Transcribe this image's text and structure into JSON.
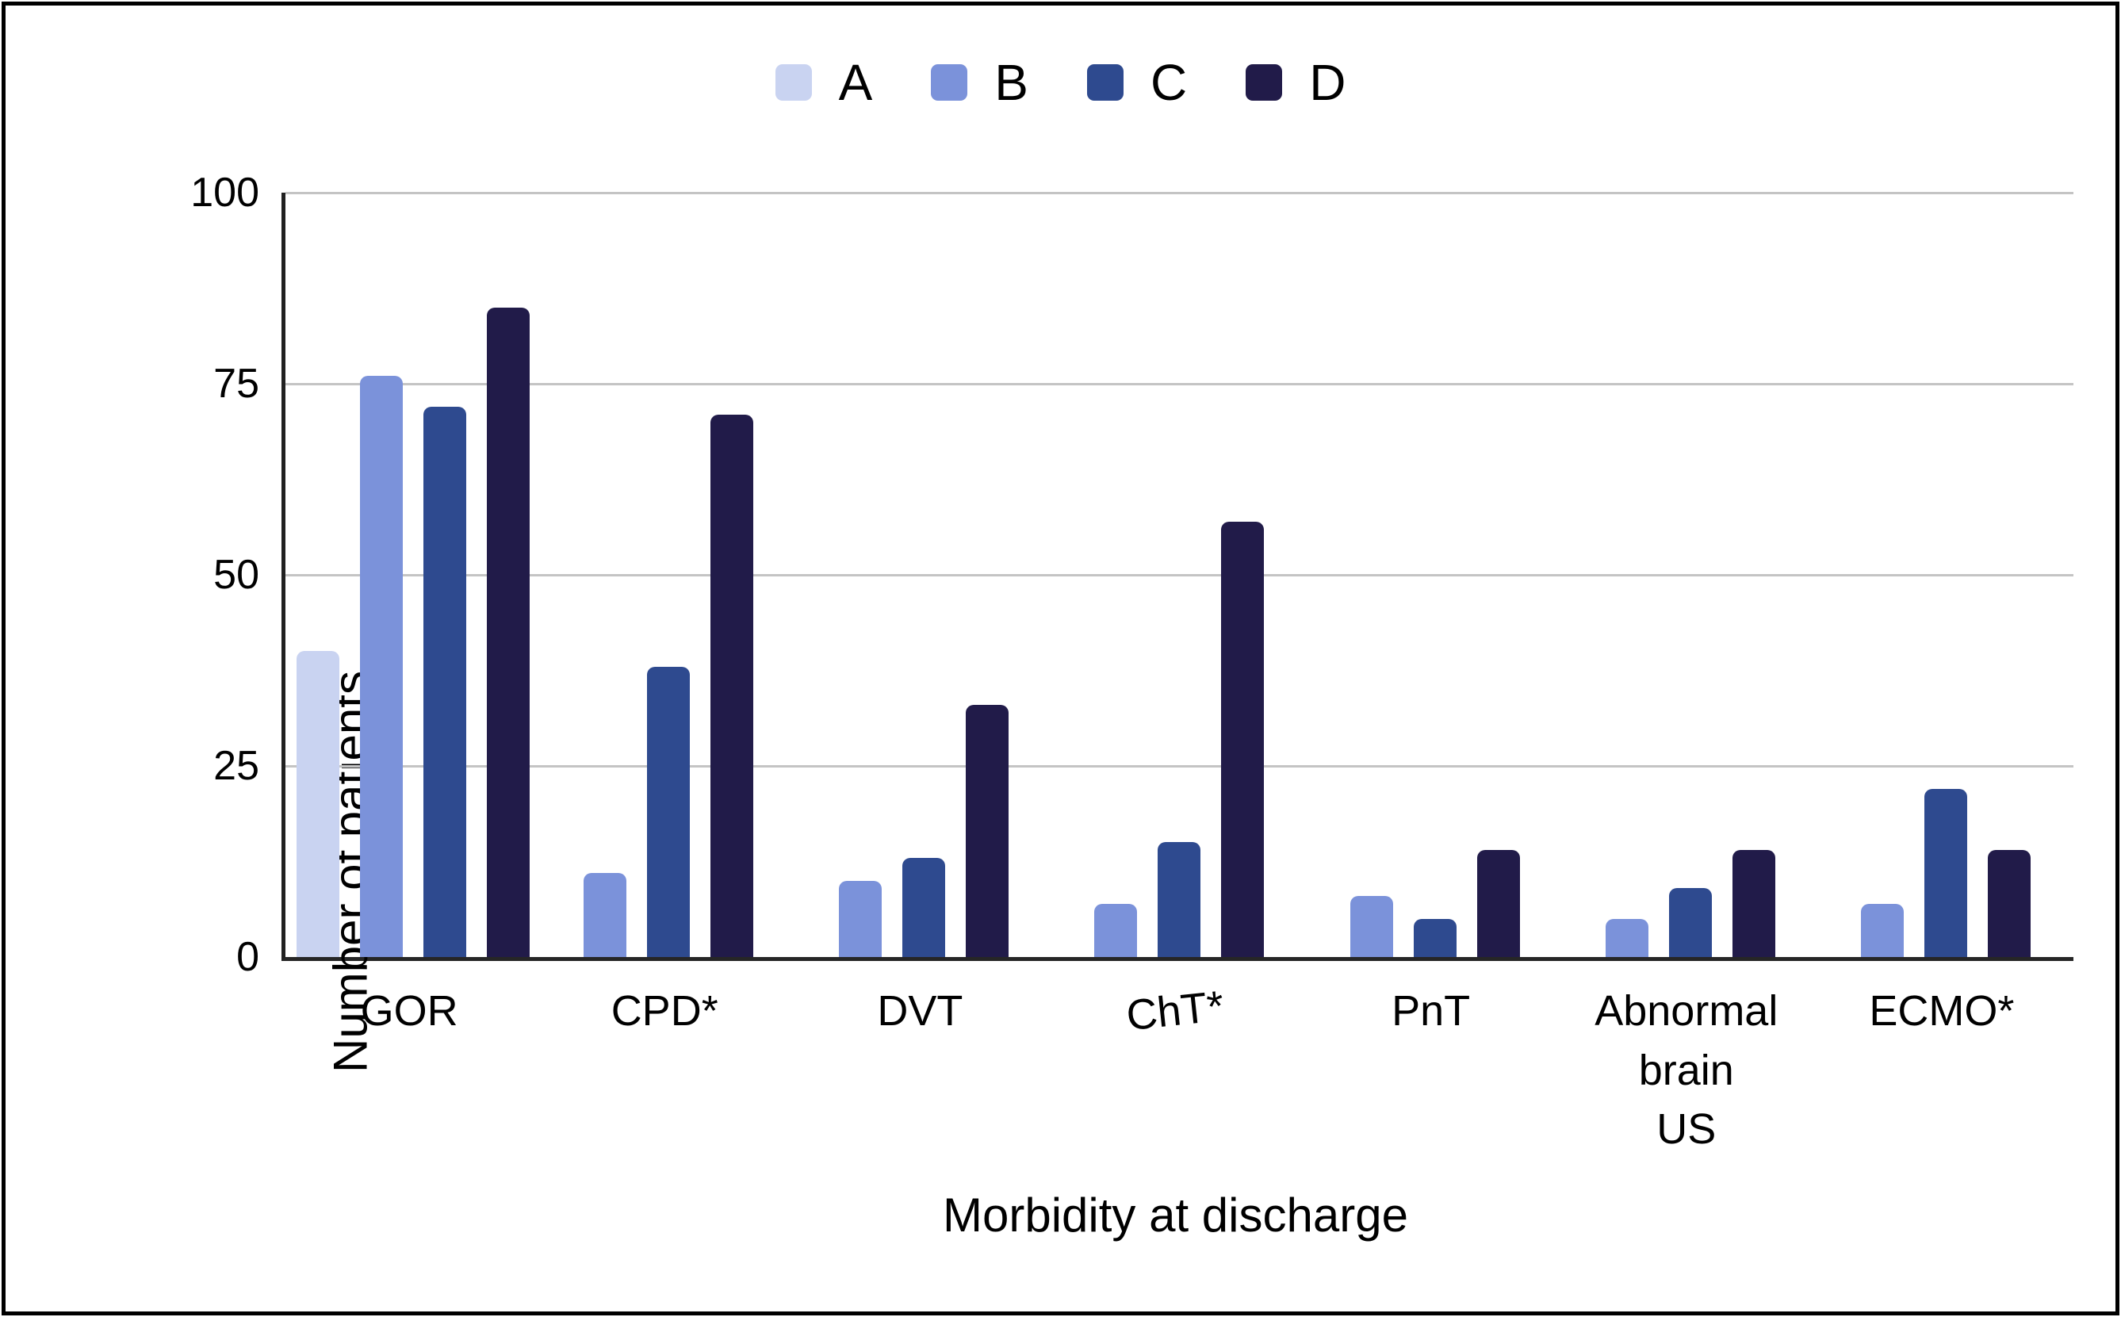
{
  "figure": {
    "background": "#ffffff",
    "border_color": "#000000"
  },
  "axes": {
    "grid_color": "#c4c4c4",
    "axis_color": "#212121",
    "text_color": "#000000"
  },
  "chart_data": {
    "type": "bar",
    "title": "",
    "xlabel": "Morbidity at discharge",
    "ylabel": "Number of patients",
    "ylim": [
      0,
      100
    ],
    "yticks": [
      0,
      25,
      50,
      75,
      100
    ],
    "grid": true,
    "legend_position": "top",
    "categories": [
      [
        "GOR"
      ],
      [
        "CPD*"
      ],
      [
        "DVT"
      ],
      [
        "ChT*"
      ],
      [
        "PnT"
      ],
      [
        "Abnormal",
        "brain",
        "US"
      ],
      [
        "ECMO*"
      ]
    ],
    "series": [
      {
        "name": "A",
        "color": "#c9d3f1",
        "values": [
          40,
          null,
          null,
          null,
          null,
          null,
          null
        ]
      },
      {
        "name": "B",
        "color": "#7b92da",
        "values": [
          76,
          11,
          10,
          7,
          8,
          5,
          7
        ]
      },
      {
        "name": "C",
        "color": "#2e4a8f",
        "values": [
          72,
          38,
          13,
          15,
          5,
          9,
          22
        ]
      },
      {
        "name": "D",
        "color": "#211b49",
        "values": [
          85,
          71,
          33,
          57,
          14,
          14,
          14
        ]
      }
    ]
  }
}
